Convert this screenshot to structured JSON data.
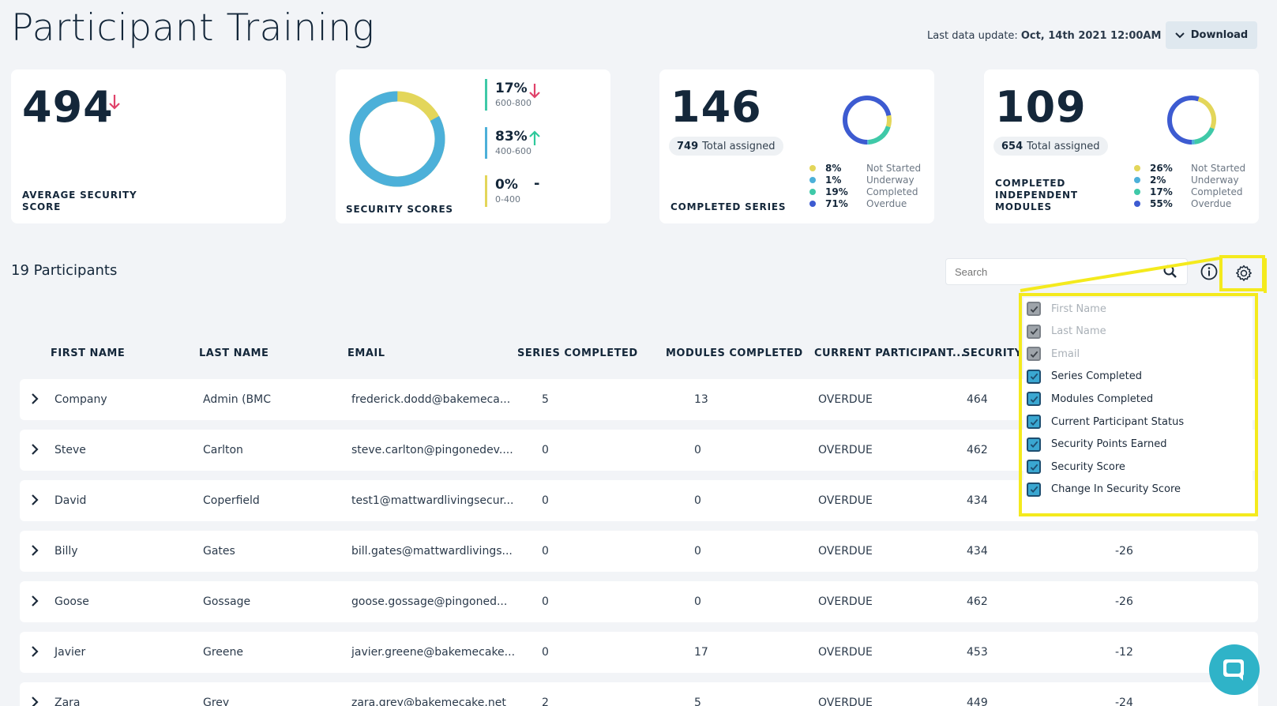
{
  "page_title": "Participant Training",
  "last_update": {
    "label": "Last data update:",
    "value": "Oct, 14th 2021 12:00AM"
  },
  "download_label": "Download",
  "cards": {
    "avg_score": {
      "value": "494",
      "label_line1": "AVERAGE SECURITY",
      "label_line2": "SCORE"
    },
    "security_scores": {
      "label": "SECURITY SCORES",
      "bands": [
        {
          "pct": "17%",
          "range": "600-800",
          "trend": "down",
          "color": "#3fc9a8"
        },
        {
          "pct": "83%",
          "range": "400-600",
          "trend": "up",
          "color": "#4cb0d9"
        },
        {
          "pct": "0%",
          "range": "0-400",
          "trend": "-",
          "color": "#e3d65a"
        }
      ],
      "donut": [
        0.17,
        0.83,
        0.0
      ]
    },
    "completed_series": {
      "value": "146",
      "total_num": "749",
      "total_label": "Total assigned",
      "label": "COMPLETED SERIES",
      "legend": [
        {
          "pct": "8%",
          "label": "Not Started",
          "color": "#e3d65a"
        },
        {
          "pct": "1%",
          "label": "Underway",
          "color": "#4cb0d9"
        },
        {
          "pct": "19%",
          "label": "Completed",
          "color": "#3fc9a8"
        },
        {
          "pct": "71%",
          "label": "Overdue",
          "color": "#3d5bd1"
        }
      ]
    },
    "completed_modules": {
      "value": "109",
      "total_num": "654",
      "total_label": "Total assigned",
      "label_line1": "COMPLETED",
      "label_line2": "INDEPENDENT",
      "label_line3": "MODULES",
      "legend": [
        {
          "pct": "26%",
          "label": "Not Started",
          "color": "#e3d65a"
        },
        {
          "pct": "2%",
          "label": "Underway",
          "color": "#4cb0d9"
        },
        {
          "pct": "17%",
          "label": "Completed",
          "color": "#3fc9a8"
        },
        {
          "pct": "55%",
          "label": "Overdue",
          "color": "#3d5bd1"
        }
      ]
    }
  },
  "participants_count": "19 Participants",
  "search": {
    "placeholder": "Search"
  },
  "columns": {
    "first_name": "FIRST NAME",
    "last_name": "LAST NAME",
    "email": "EMAIL",
    "series": "SERIES COMPLETED",
    "modules": "MODULES COMPLETED",
    "status": "CURRENT PARTICIPANT...",
    "security": "SECURITY"
  },
  "column_settings": [
    {
      "label": "First Name",
      "checked": true,
      "disabled": true
    },
    {
      "label": "Last Name",
      "checked": true,
      "disabled": true
    },
    {
      "label": "Email",
      "checked": true,
      "disabled": true
    },
    {
      "label": "Series Completed",
      "checked": true,
      "disabled": false
    },
    {
      "label": "Modules Completed",
      "checked": true,
      "disabled": false
    },
    {
      "label": "Current Participant Status",
      "checked": true,
      "disabled": false
    },
    {
      "label": "Security Points Earned",
      "checked": true,
      "disabled": false
    },
    {
      "label": "Security Score",
      "checked": true,
      "disabled": false
    },
    {
      "label": "Change In Security Score",
      "checked": true,
      "disabled": false
    }
  ],
  "rows": [
    {
      "first": "Company",
      "last": "Admin (BMC",
      "email": "frederick.dodd@bakemeca...",
      "series": "5",
      "modules": "13",
      "status": "OVERDUE",
      "security": "464",
      "change": ""
    },
    {
      "first": "Steve",
      "last": "Carlton",
      "email": "steve.carlton@pingonedev....",
      "series": "0",
      "modules": "0",
      "status": "OVERDUE",
      "security": "462",
      "change": ""
    },
    {
      "first": "David",
      "last": "Coperfield",
      "email": "test1@mattwardlivingsecur...",
      "series": "0",
      "modules": "0",
      "status": "OVERDUE",
      "security": "434",
      "change": ""
    },
    {
      "first": "Billy",
      "last": "Gates",
      "email": "bill.gates@mattwardlivings...",
      "series": "0",
      "modules": "0",
      "status": "OVERDUE",
      "security": "434",
      "change": "-26"
    },
    {
      "first": "Goose",
      "last": "Gossage",
      "email": "goose.gossage@pingoned...",
      "series": "0",
      "modules": "0",
      "status": "OVERDUE",
      "security": "462",
      "change": "-26"
    },
    {
      "first": "Javier",
      "last": "Greene",
      "email": "javier.greene@bakemecake...",
      "series": "0",
      "modules": "17",
      "status": "OVERDUE",
      "security": "453",
      "change": "-12"
    },
    {
      "first": "Zara",
      "last": "Grey",
      "email": "zara.grey@bakemecake.net",
      "series": "2",
      "modules": "5",
      "status": "OVERDUE",
      "security": "449",
      "change": "-24"
    }
  ]
}
